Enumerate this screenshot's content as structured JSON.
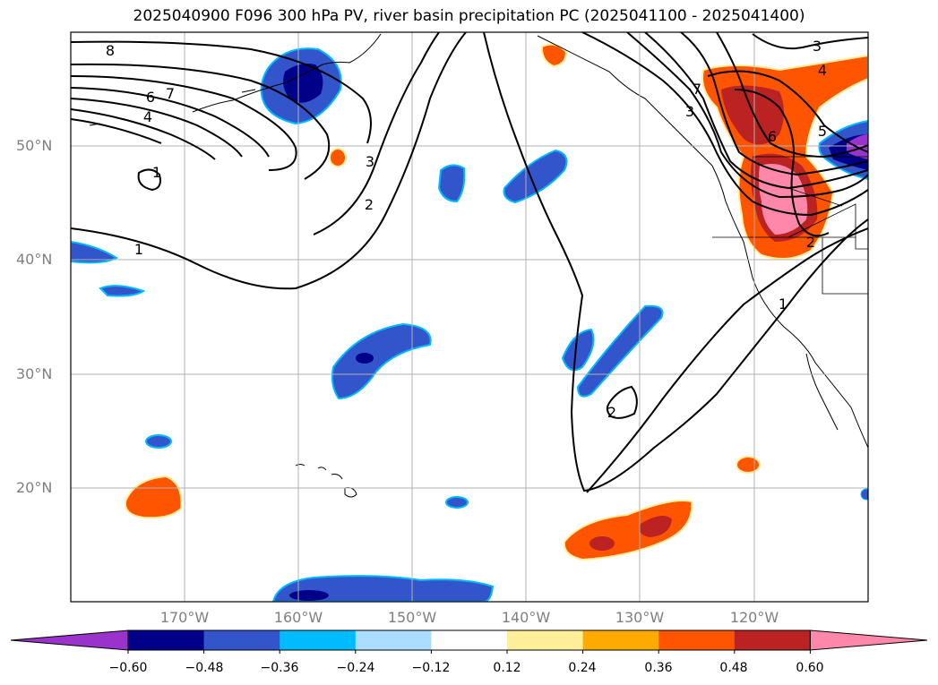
{
  "title": "2025040900 F096 300 hPa PV, river basin precipitation PC (2025041100 - 2025041400)",
  "lat_labels": [
    "50°N",
    "40°N",
    "30°N",
    "20°N"
  ],
  "lon_labels": [
    "170°W",
    "160°W",
    "150°W",
    "140°W",
    "130°W",
    "120°W"
  ],
  "colorbar": {
    "ticks": [
      "−0.60",
      "−0.48",
      "−0.36",
      "−0.24",
      "−0.12",
      "0.12",
      "0.24",
      "0.36",
      "0.48",
      "0.60"
    ],
    "colors": [
      "#9933cc",
      "#000088",
      "#3355cc",
      "#00bbff",
      "#aaddff",
      "#ffffff",
      "#ffee99",
      "#ffaa00",
      "#ff5500",
      "#bb2222",
      "#ff88aa"
    ]
  },
  "contour_labels": [
    "8",
    "7",
    "6",
    "4",
    "1",
    "3",
    "2",
    "1",
    "3",
    "4",
    "5",
    "6",
    "7",
    "3",
    "2",
    "1",
    "2"
  ],
  "map_extent": {
    "lon_min": -180,
    "lon_max": -110,
    "lat_min": 10,
    "lat_max": 60
  }
}
